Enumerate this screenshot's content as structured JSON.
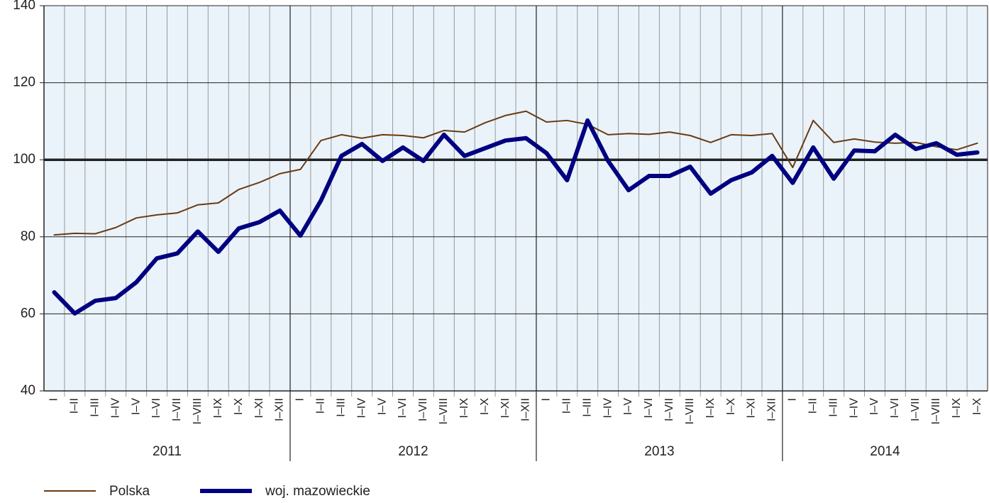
{
  "chart_data": {
    "type": "line",
    "categories": [
      "I",
      "I–II",
      "I–III",
      "I–IV",
      "I–V",
      "I–VI",
      "I–VII",
      "I–VIII",
      "I–IX",
      "I–X",
      "I–XI",
      "I–XII",
      "I",
      "I–II",
      "I–III",
      "I–IV",
      "I–V",
      "I–VI",
      "I–VII",
      "I–VIII",
      "I–IX",
      "I–X",
      "I–XI",
      "I–XII",
      "I",
      "I–II",
      "I–III",
      "I–IV",
      "I–V",
      "I–VI",
      "I–VII",
      "I–VIII",
      "I–IX",
      "I–X",
      "I–XI",
      "I–XII",
      "I",
      "I–II",
      "I–III",
      "I–IV",
      "I–V",
      "I–VI",
      "I–VII",
      "I–VIII",
      "I–IX",
      "I–X"
    ],
    "years": [
      "2011",
      "2012",
      "2013",
      "2014"
    ],
    "series": [
      {
        "name": "Polska",
        "color": "#6b3a12",
        "width": 2,
        "values": [
          80.5,
          80.9,
          80.8,
          82.4,
          84.9,
          85.7,
          86.2,
          88.3,
          88.8,
          92.3,
          94.1,
          96.4,
          97.5,
          105.0,
          106.5,
          105.6,
          106.5,
          106.3,
          105.7,
          107.6,
          107.2,
          109.6,
          111.5,
          112.6,
          109.8,
          110.2,
          109.2,
          106.5,
          106.8,
          106.6,
          107.2,
          106.3,
          104.5,
          106.5,
          106.3,
          106.8,
          98.0,
          110.2,
          104.5,
          105.4,
          104.6,
          104.3,
          104.5,
          103.4,
          102.6,
          104.3
        ]
      },
      {
        "name": "woj. mazowieckie",
        "color": "#000080",
        "width": 6,
        "values": [
          65.6,
          60.1,
          63.4,
          64.1,
          68.2,
          74.4,
          75.7,
          81.4,
          76.1,
          82.2,
          83.8,
          86.8,
          80.3,
          89.4,
          101.0,
          104.1,
          99.7,
          103.2,
          99.7,
          106.5,
          101.0,
          103.0,
          105.0,
          105.6,
          101.7,
          94.7,
          110.2,
          99.7,
          92.1,
          95.8,
          95.8,
          98.2,
          91.2,
          94.7,
          96.7,
          101.0,
          94.0,
          103.2,
          95.1,
          102.4,
          102.2,
          106.5,
          102.8,
          104.3,
          101.3,
          101.9
        ]
      }
    ],
    "ylim": [
      40,
      140
    ],
    "yticks": [
      40,
      60,
      80,
      100,
      120,
      140
    ],
    "grid": true,
    "highlight_tick": 100,
    "background": "#eaf3fa"
  }
}
